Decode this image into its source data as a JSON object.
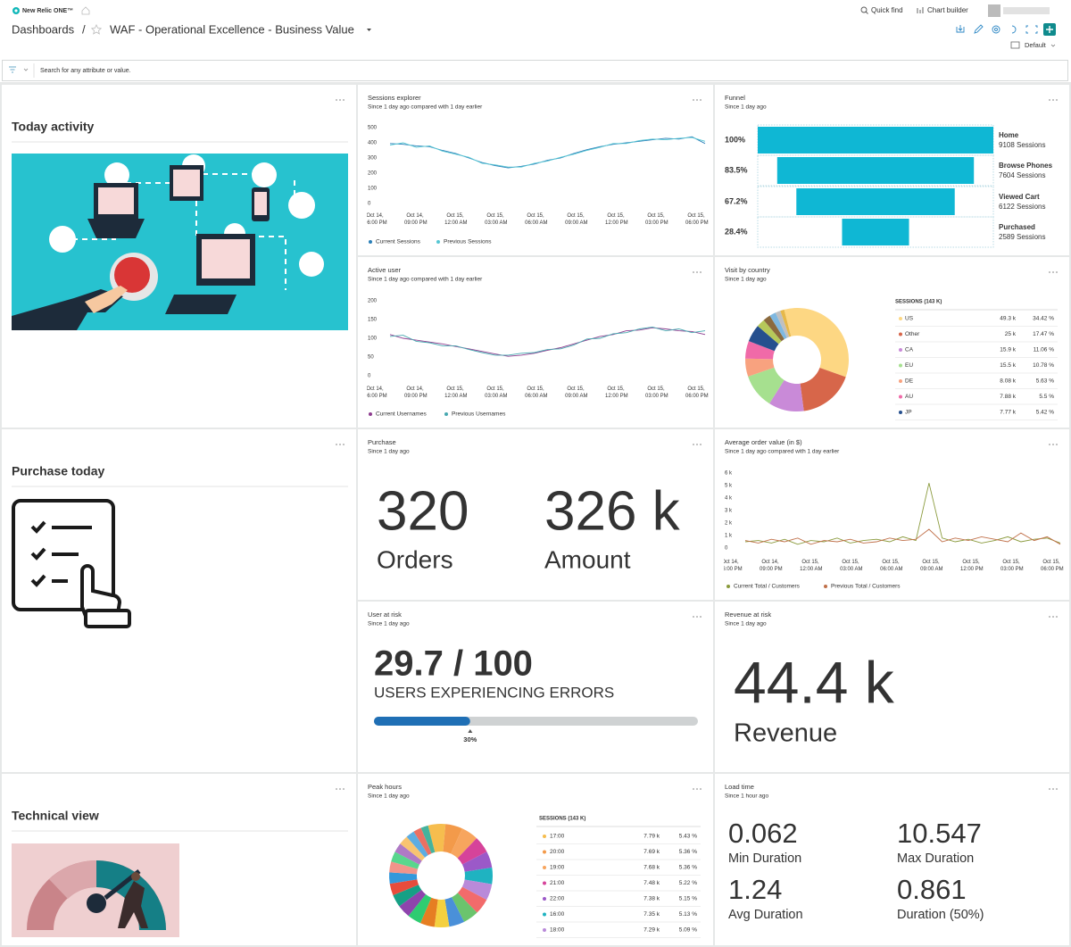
{
  "header": {
    "logo": "New Relic ONE™",
    "quick_find": "Quick find",
    "chart_builder": "Chart builder",
    "breadcrumb": "Dashboards",
    "separator": "/",
    "title": "WAF - Operational Excellence - Business Value",
    "view": "Default"
  },
  "filter": {
    "placeholder": "Search for any attribute or value."
  },
  "widgets": {
    "today_activity": {
      "title": "Today activity"
    },
    "purchase_today": {
      "title": "Purchase today"
    },
    "technical_view": {
      "title": "Technical view"
    },
    "sessions_explorer": {
      "title": "Sessions explorer",
      "subtitle": "Since 1 day ago compared with 1 day earlier",
      "chart_data": {
        "type": "line",
        "ylim": [
          0,
          500
        ],
        "yticks": [
          0,
          100,
          200,
          300,
          400,
          500
        ],
        "grid": false,
        "xticks": [
          "Oct 14, 06:00 PM",
          "Oct 14, 09:00 PM",
          "Oct 15, 12:00 AM",
          "Oct 15, 03:00 AM",
          "Oct 15, 06:00 AM",
          "Oct 15, 09:00 AM",
          "Oct 15, 12:00 PM",
          "Oct 15, 03:00 PM",
          "Oct 15, 06:00 PM"
        ],
        "series": [
          {
            "name": "Current Sessions",
            "color": "#2a7fb8",
            "values": [
              395,
              390,
              380,
              375,
              350,
              330,
              300,
              270,
              250,
              235,
              245,
              260,
              285,
              300,
              330,
              355,
              375,
              390,
              400,
              410,
              420,
              430,
              425,
              440,
              395
            ]
          },
          {
            "name": "Previous Sessions",
            "color": "#56c6d3",
            "values": [
              385,
              400,
              370,
              380,
              345,
              325,
              305,
              265,
              255,
              240,
              240,
              265,
              280,
              305,
              325,
              350,
              370,
              395,
              395,
              415,
              425,
              420,
              430,
              435,
              410
            ]
          }
        ]
      }
    },
    "funnel": {
      "title": "Funnel",
      "subtitle": "Since 1 day ago",
      "chart_data": {
        "type": "funnel",
        "color": "#0fb7d4",
        "categories": [
          "Home",
          "Browse Phones",
          "Viewed Cart",
          "Purchased"
        ],
        "values": [
          9108,
          7604,
          6122,
          2589
        ],
        "value_labels": [
          "9108 Sessions",
          "7604 Sessions",
          "6122 Sessions",
          "2589 Sessions"
        ],
        "percents": [
          100,
          83.5,
          67.2,
          28.4
        ],
        "percent_labels": [
          "100%",
          "83.5%",
          "67.2%",
          "28.4%"
        ]
      }
    },
    "active_user": {
      "title": "Active user",
      "subtitle": "Since 1 day ago compared with 1 day earlier",
      "chart_data": {
        "type": "line",
        "ylim": [
          0,
          200
        ],
        "yticks": [
          0,
          50,
          100,
          150,
          200
        ],
        "grid": false,
        "xticks": [
          "Oct 14, 06:00 PM",
          "Oct 14, 09:00 PM",
          "Oct 15, 12:00 AM",
          "Oct 15, 03:00 AM",
          "Oct 15, 06:00 AM",
          "Oct 15, 09:00 AM",
          "Oct 15, 12:00 PM",
          "Oct 15, 03:00 PM",
          "Oct 15, 06:00 PM"
        ],
        "series": [
          {
            "name": "Current Usernames",
            "color": "#8e3d8f",
            "values": [
              110,
              100,
              95,
              90,
              85,
              78,
              72,
              65,
              58,
              52,
              55,
              60,
              68,
              75,
              85,
              95,
              105,
              110,
              120,
              122,
              128,
              125,
              120,
              118,
              110
            ]
          },
          {
            "name": "Previous Usernames",
            "color": "#47a8b0",
            "values": [
              105,
              108,
              92,
              88,
              80,
              80,
              70,
              62,
              55,
              55,
              60,
              62,
              70,
              72,
              82,
              98,
              100,
              112,
              115,
              125,
              130,
              120,
              125,
              115,
              120
            ]
          }
        ]
      }
    },
    "visit_by_country": {
      "title": "Visit by country",
      "subtitle": "Since 1 day ago",
      "chart_data": {
        "type": "donut",
        "table_title": "SESSIONS (143 K)",
        "categories": [
          "US",
          "Other",
          "CA",
          "EU",
          "DE",
          "AU",
          "JP",
          null,
          null,
          null,
          null,
          null
        ],
        "values": [
          49300,
          25000,
          15900,
          15500,
          8080,
          7880,
          7770,
          3720,
          3290,
          2860,
          2290,
          1740
        ],
        "value_labels": [
          "49.3 k",
          "25 k",
          "15.9 k",
          "15.5 k",
          "8.08 k",
          "7.88 k",
          "7.77 k",
          null,
          null,
          null,
          null,
          null
        ],
        "percents": [
          34.42,
          17.47,
          11.06,
          10.78,
          5.63,
          5.5,
          5.42,
          2.6,
          2.3,
          2.0,
          1.6,
          1.22
        ],
        "percent_labels": [
          "34.42 %",
          "17.47 %",
          "11.06 %",
          "10.78 %",
          "5.63 %",
          "5.5 %",
          "5.42 %",
          null,
          null,
          null,
          null,
          null
        ],
        "colors": [
          "#fdd783",
          "#d7664a",
          "#c98ad8",
          "#a6e08f",
          "#f8a27f",
          "#f06aa8",
          "#26508e",
          "#b6c85a",
          "#8b6a3e",
          "#7fb8e0",
          "#c0c0c0",
          "#e6b84a"
        ]
      }
    },
    "purchase": {
      "title": "Purchase",
      "subtitle": "Since 1 day ago",
      "metrics": [
        {
          "value": 320,
          "label": "Orders"
        },
        {
          "value": 326000,
          "value_label": "326 k",
          "label": "Amount"
        }
      ]
    },
    "average_order_value": {
      "title": "Average order value (in $)",
      "subtitle": "Since 1 day ago compared with 1 day earlier",
      "chart_data": {
        "type": "line",
        "ylim": [
          0,
          6000
        ],
        "yticks": [
          0,
          {
            "value": 1000,
            "label": "1 k"
          },
          {
            "value": 2000,
            "label": "2 k"
          },
          {
            "value": 3000,
            "label": "3 k"
          },
          {
            "value": 4000,
            "label": "4 k"
          },
          {
            "value": 5000,
            "label": "5 k"
          },
          {
            "value": 6000,
            "label": "6 k"
          }
        ],
        "grid": false,
        "xticks": [
          "Oct 14, 06:00 PM",
          "Oct 14, 09:00 PM",
          "Oct 15, 12:00 AM",
          "Oct 15, 03:00 AM",
          "Oct 15, 06:00 AM",
          "Oct 15, 09:00 AM",
          "Oct 15, 12:00 PM",
          "Oct 15, 03:00 PM",
          "Oct 15, 06:00 PM"
        ],
        "series": [
          {
            "name": "Current Total / Customers",
            "color": "#8a9a3c",
            "values": [
              500,
              600,
              400,
              700,
              300,
              600,
              500,
              800,
              400,
              600,
              700,
              500,
              900,
              600,
              5200,
              800,
              500,
              700,
              400,
              600,
              900,
              500,
              700,
              800,
              400
            ]
          },
          {
            "name": "Previous Total / Customers",
            "color": "#c0704a",
            "values": [
              600,
              400,
              700,
              500,
              800,
              300,
              600,
              500,
              700,
              400,
              500,
              800,
              600,
              700,
              1500,
              500,
              800,
              600,
              900,
              700,
              500,
              1200,
              600,
              900,
              300
            ]
          }
        ]
      }
    },
    "user_at_risk": {
      "title": "User at risk",
      "subtitle": "Since 1 day ago",
      "value": 29.7,
      "max": 100,
      "value_label": "29.7 / 100",
      "label": "USERS EXPERIENCING ERRORS",
      "percent_label": "30%"
    },
    "revenue_at_risk": {
      "title": "Revenue at risk",
      "subtitle": "Since 1 day ago",
      "metrics": [
        {
          "value": 44400,
          "value_label": "44.4 k",
          "label": "Revenue"
        }
      ]
    },
    "peak_hours": {
      "title": "Peak hours",
      "subtitle": "Since 1 day ago",
      "chart_data": {
        "type": "donut",
        "table_title": "SESSIONS (143 K)",
        "categories": [
          "17:00",
          "20:00",
          "19:00",
          "21:00",
          "22:00",
          "16:00",
          "18:00",
          null,
          null,
          null,
          null,
          null,
          null,
          null,
          null,
          null,
          null,
          null,
          null,
          null,
          null,
          null,
          null,
          null
        ],
        "values": [
          7790,
          7690,
          7680,
          7480,
          7380,
          7350,
          7290,
          7080,
          7010,
          6860,
          6580,
          6440,
          6150,
          5860,
          5580,
          5290,
          5010,
          4860,
          4580,
          4290,
          4150,
          3860,
          3580,
          3300
        ],
        "value_labels": [
          "7.79 k",
          "7.69 k",
          "7.68 k",
          "7.48 k",
          "7.38 k",
          "7.35 k",
          "7.29 k",
          null,
          null,
          null,
          null,
          null,
          null,
          null,
          null,
          null,
          null,
          null,
          null,
          null,
          null,
          null,
          null,
          null
        ],
        "percents": [
          5.43,
          5.36,
          5.36,
          5.22,
          5.15,
          5.13,
          5.09,
          4.95,
          4.9,
          4.8,
          4.6,
          4.5,
          4.3,
          4.1,
          3.9,
          3.7,
          3.5,
          3.4,
          3.2,
          3.0,
          2.9,
          2.7,
          2.5,
          2.31
        ],
        "percent_labels": [
          "5.43 %",
          "5.36 %",
          "5.36 %",
          "5.22 %",
          "5.15 %",
          "5.13 %",
          "5.09 %",
          null,
          null,
          null,
          null,
          null,
          null,
          null,
          null,
          null,
          null,
          null,
          null,
          null,
          null,
          null,
          null,
          null
        ],
        "colors": [
          "#f6bd4e",
          "#f39a4a",
          "#f7a55e",
          "#d6439a",
          "#9b59c8",
          "#1fb3c1",
          "#b98ad9",
          "#f26b6b",
          "#6bc46d",
          "#4a90d9",
          "#f4d03f",
          "#e67e22",
          "#2ecc71",
          "#8e44ad",
          "#16a085",
          "#e74c3c",
          "#3498db",
          "#f1948a",
          "#58d68d",
          "#af7ac5",
          "#f8c471",
          "#5dade2",
          "#ec7063",
          "#45b39d"
        ]
      }
    },
    "load_time": {
      "title": "Load time",
      "subtitle": "Since 1 hour ago",
      "metrics": [
        {
          "value": 0.062,
          "label": "Min Duration"
        },
        {
          "value": 10.547,
          "label": "Max Duration"
        },
        {
          "value": 1.24,
          "label": "Avg Duration"
        },
        {
          "value": 0.861,
          "label": "Duration (50%)"
        }
      ]
    }
  }
}
